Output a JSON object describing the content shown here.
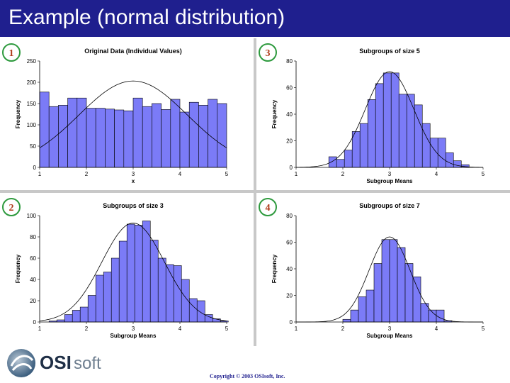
{
  "slide": {
    "title": "Example (normal distribution)",
    "copyright": "Copyright © 2003 OSIsoft, Inc.",
    "logo_text_bold": "OSI",
    "logo_text_light": "soft"
  },
  "colors": {
    "title_bar": "#1f1f8e",
    "bar_fill": "#7b7bf7",
    "bar_stroke": "#000000",
    "badge_ring": "#2e9a3e",
    "badge_text": "#b03a1a"
  },
  "chart_data": [
    {
      "badge": "1",
      "type": "bar",
      "title": "Original Data (Individual Values)",
      "xlabel": "x",
      "ylabel": "Frequency",
      "xlim": [
        1,
        5
      ],
      "ylim": [
        0,
        250
      ],
      "yticks": [
        0,
        50,
        100,
        150,
        200,
        250
      ],
      "xticks": [
        1,
        2,
        3,
        4,
        5
      ],
      "bin_start": 1.0,
      "bin_width": 0.2,
      "values": [
        177,
        143,
        146,
        163,
        163,
        139,
        139,
        137,
        135,
        133,
        163,
        143,
        150,
        136,
        160,
        130,
        153,
        146,
        160,
        150
      ],
      "curve": {
        "mean": 3,
        "sd": 1.16,
        "peak": 203
      }
    },
    {
      "badge": "3",
      "type": "bar",
      "title": "Subgroups of size 5",
      "xlabel": "Subgroup Means",
      "ylabel": "Frequency",
      "xlim": [
        1,
        5
      ],
      "ylim": [
        0,
        80
      ],
      "yticks": [
        0,
        20,
        40,
        60,
        80
      ],
      "xticks": [
        1,
        2,
        3,
        4,
        5
      ],
      "bin_start": 1.7,
      "bin_width": 0.1667,
      "values": [
        8,
        6,
        13,
        27,
        33,
        51,
        63,
        71,
        71,
        55,
        55,
        47,
        33,
        22,
        22,
        11,
        5,
        2
      ],
      "curve": {
        "mean": 3,
        "sd": 0.52,
        "peak": 72
      }
    },
    {
      "badge": "2",
      "type": "bar",
      "title": "Subgroups of size 3",
      "xlabel": "Subgroup Means",
      "ylabel": "Frequency",
      "xlim": [
        1,
        5
      ],
      "ylim": [
        0,
        100
      ],
      "yticks": [
        0,
        20,
        40,
        60,
        80,
        100
      ],
      "xticks": [
        1,
        2,
        3,
        4,
        5
      ],
      "bin_start": 1.2,
      "bin_width": 0.1667,
      "values": [
        1,
        2,
        7,
        11,
        14,
        25,
        44,
        47,
        60,
        76,
        92,
        91,
        95,
        77,
        60,
        54,
        53,
        40,
        22,
        20,
        7,
        3,
        1
      ],
      "curve": {
        "mean": 3,
        "sd": 0.67,
        "peak": 93
      }
    },
    {
      "badge": "4",
      "type": "bar",
      "title": "Subgroups of size 7",
      "xlabel": "Subgroup Means",
      "ylabel": "Frequency",
      "xlim": [
        1,
        5
      ],
      "ylim": [
        0,
        80
      ],
      "yticks": [
        0,
        20,
        40,
        60,
        80
      ],
      "xticks": [
        1,
        2,
        3,
        4,
        5
      ],
      "bin_start": 2.0,
      "bin_width": 0.1667,
      "values": [
        2,
        9,
        19,
        24,
        44,
        62,
        62,
        56,
        44,
        34,
        14,
        9,
        9,
        1
      ],
      "curve": {
        "mean": 3,
        "sd": 0.44,
        "peak": 64
      }
    }
  ]
}
